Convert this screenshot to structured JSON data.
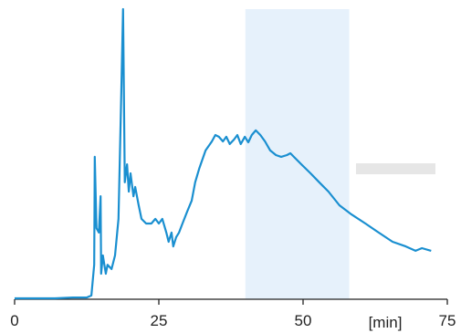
{
  "chart_data": {
    "type": "line",
    "x_label": "[min]",
    "xlim": [
      0,
      75
    ],
    "xticks": [
      0,
      25,
      50,
      75
    ],
    "ylim": [
      0,
      100
    ],
    "shaded_region": [
      40,
      58
    ],
    "shaded_color": "#e6f1fb",
    "series": [
      {
        "color": "#1a8fd0",
        "x": [
          0,
          7,
          10.1,
          12.5,
          13.3,
          13.8,
          13.9,
          14.2,
          14.6,
          14.9,
          15.0,
          15.3,
          15.8,
          16.1,
          16.8,
          17.4,
          18.0,
          18.5,
          18.8,
          19.1,
          19.5,
          19.8,
          20.1,
          20.6,
          20.9,
          21.5,
          22.0,
          22.8,
          23.7,
          24.4,
          25.0,
          25.6,
          26.3,
          26.7,
          27.2,
          27.5,
          28.0,
          28.5,
          29.1,
          29.9,
          30.7,
          31.3,
          32.0,
          33.1,
          34.2,
          34.8,
          35.4,
          36.1,
          36.7,
          37.3,
          38.0,
          38.6,
          39.2,
          39.9,
          40.5,
          41.1,
          41.8,
          42.6,
          43.4,
          44.3,
          45.3,
          46.2,
          47.2,
          47.8,
          48.4,
          49.7,
          51.3,
          52.8,
          54.4,
          56.3,
          58.4,
          60.8,
          63.1,
          65.5,
          67.8,
          69.5,
          70.6,
          72.2
        ],
        "values": [
          0.3,
          0.3,
          0.6,
          0.6,
          1.3,
          11.9,
          49.1,
          24.5,
          23.0,
          35.5,
          8.8,
          15.1,
          8.8,
          11.9,
          10.4,
          15.1,
          27.7,
          71.7,
          100,
          40.3,
          46.5,
          37.1,
          43.4,
          35.5,
          38.7,
          32.4,
          27.7,
          26.1,
          26.1,
          27.7,
          26.1,
          27.7,
          23.0,
          19.8,
          23.0,
          18.2,
          21.4,
          23.0,
          26.1,
          30.2,
          34.0,
          40.3,
          45.0,
          51.3,
          54.4,
          56.6,
          56.0,
          54.4,
          56.0,
          53.5,
          55.0,
          56.6,
          53.5,
          56.0,
          54.1,
          56.6,
          58.2,
          56.6,
          54.4,
          51.3,
          49.7,
          49.1,
          49.7,
          50.3,
          49.1,
          46.5,
          43.4,
          40.3,
          37.1,
          32.4,
          29.2,
          26.1,
          23.0,
          19.8,
          18.2,
          16.7,
          17.6,
          16.7
        ]
      }
    ]
  }
}
